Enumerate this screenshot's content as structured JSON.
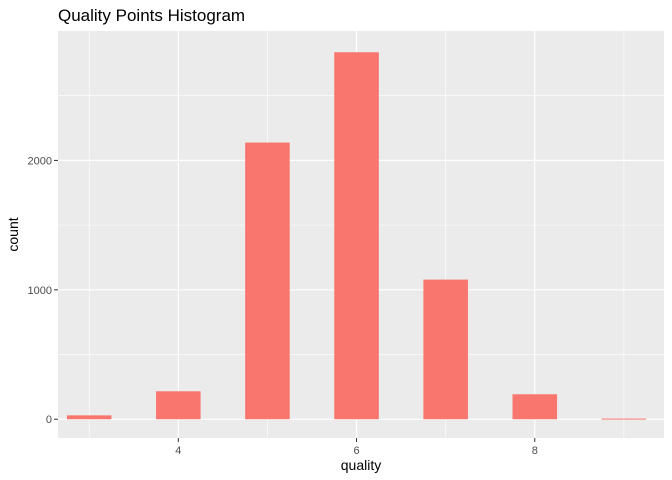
{
  "chart_data": {
    "type": "bar",
    "title": "Quality Points Histogram",
    "xlabel": "quality",
    "ylabel": "count",
    "x": [
      3,
      4,
      5,
      6,
      7,
      8,
      9
    ],
    "values": [
      30,
      216,
      2138,
      2836,
      1079,
      193,
      5
    ],
    "xlim": [
      2.65,
      9.45
    ],
    "ylim": [
      -145,
      3000
    ],
    "x_ticks": [
      4,
      6,
      8
    ],
    "y_ticks": [
      0,
      1000,
      2000
    ],
    "bar_width": 0.5,
    "grid": true,
    "legend": "none",
    "colors": {
      "bar": "#F8766D",
      "panel": "#EBEBEB",
      "grid_major": "#FFFFFF"
    }
  }
}
